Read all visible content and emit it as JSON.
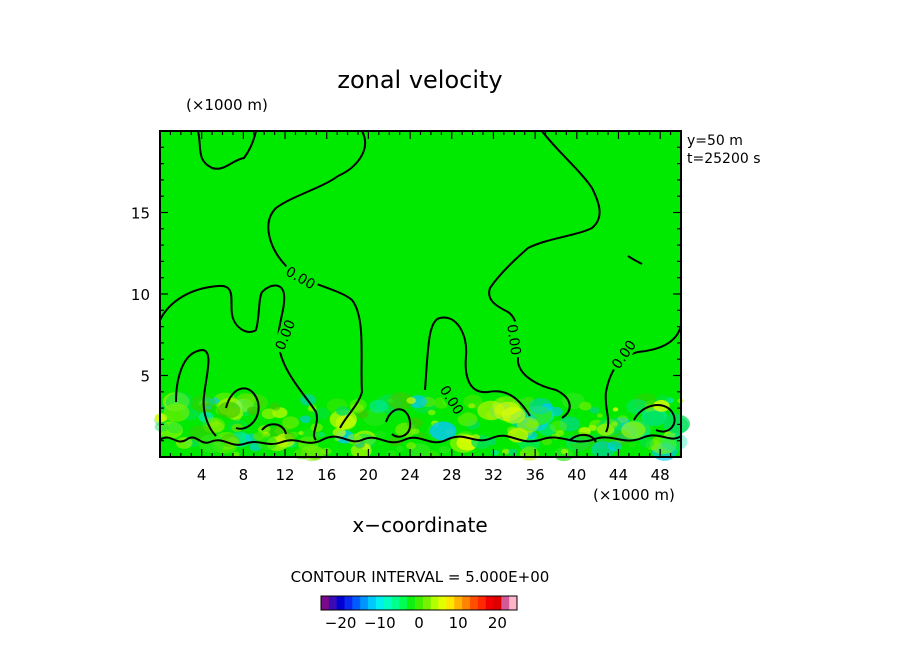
{
  "chart_data": {
    "type": "heatmap",
    "subtype": "filled contour with contour lines",
    "title": "zonal velocity",
    "xlabel": "x−coordinate",
    "x_unit": "(×1000 m)",
    "y_unit": "(×1000 m)",
    "annotations": [
      "y=50 m",
      "t=25200 s"
    ],
    "contour_interval_text": "CONTOUR INTERVAL = 5.000E+00",
    "xlim": [
      0,
      50
    ],
    "ylim": [
      0,
      20
    ],
    "x_ticks": [
      4,
      8,
      12,
      16,
      20,
      24,
      28,
      32,
      36,
      40,
      44,
      48
    ],
    "y_ticks": [
      5,
      10,
      15
    ],
    "contour_labels": [
      {
        "text": "0.00",
        "x": 13.5,
        "y": 11.0,
        "angle": 30
      },
      {
        "text": "0.00",
        "x": 12.0,
        "y": 7.5,
        "angle": -68
      },
      {
        "text": "0.00",
        "x": 28.0,
        "y": 3.5,
        "angle": 58
      },
      {
        "text": "0.00",
        "x": 34.0,
        "y": 7.2,
        "angle": 82
      },
      {
        "text": "0.00",
        "x": 44.5,
        "y": 6.3,
        "angle": -55
      }
    ],
    "colorbar": {
      "tick_labels": [
        "−20",
        "−10",
        "0",
        "10",
        "20"
      ],
      "tick_values": [
        -20,
        -10,
        0,
        10,
        20
      ],
      "range": [
        -25,
        25
      ],
      "colors": [
        "#7a0a8a",
        "#3a0ab4",
        "#0000d2",
        "#0a28f0",
        "#005cff",
        "#0096ff",
        "#00c8ff",
        "#00f0f0",
        "#00ffc0",
        "#00ff8c",
        "#00ff50",
        "#10f010",
        "#40f000",
        "#78f000",
        "#b4ff00",
        "#e6ff00",
        "#ffe600",
        "#ffb400",
        "#ff8200",
        "#ff5000",
        "#ff2800",
        "#f00000",
        "#dc0000",
        "#d25a96",
        "#ffb4c8"
      ]
    },
    "background_value_color": "#00ea00"
  }
}
